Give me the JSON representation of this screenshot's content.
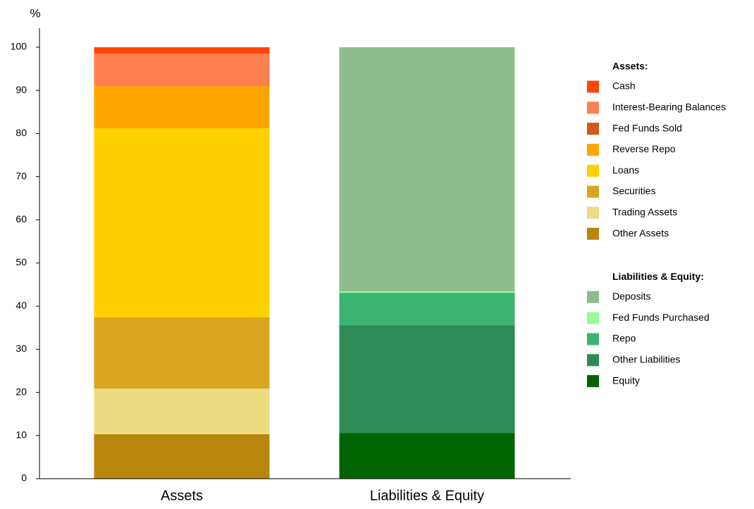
{
  "chart_data": {
    "type": "stacked-bar",
    "y_label": "%",
    "categories": [
      "Assets",
      "Liabilities & Equity"
    ],
    "ylim": [
      0,
      100
    ],
    "yticks": [
      0,
      10,
      20,
      30,
      40,
      50,
      60,
      70,
      80,
      90,
      100
    ],
    "groups": [
      {
        "title": "Assets:",
        "series": [
          {
            "name": "Cash",
            "color": "#ff4500",
            "values": [
              1.5,
              null
            ]
          },
          {
            "name": "Interest-Bearing Balances",
            "color": "#ff7f50",
            "values": [
              7.5,
              null
            ]
          },
          {
            "name": "Fed Funds Sold",
            "color": "#d2581a",
            "values": [
              0,
              null
            ]
          },
          {
            "name": "Reverse Repo",
            "color": "#ffa500",
            "values": [
              9.8,
              null
            ]
          },
          {
            "name": "Loans",
            "color": "#ffd000",
            "values": [
              43.8,
              null
            ]
          },
          {
            "name": "Securities",
            "color": "#daa520",
            "values": [
              16.5,
              null
            ]
          },
          {
            "name": "Trading Assets",
            "color": "#eedc82",
            "values": [
              10.6,
              null
            ]
          },
          {
            "name": "Other Assets",
            "color": "#b8860b",
            "values": [
              10.3,
              null
            ]
          }
        ]
      },
      {
        "title": "Liabilities & Equity:",
        "series": [
          {
            "name": "Deposits",
            "color": "#8fbc8f",
            "values": [
              null,
              56.6
            ]
          },
          {
            "name": "Fed Funds Purchased",
            "color": "#98fb98",
            "values": [
              null,
              0.3
            ]
          },
          {
            "name": "Repo",
            "color": "#3cb371",
            "values": [
              null,
              7.5
            ]
          },
          {
            "name": "Other Liabilities",
            "color": "#2e8b57",
            "values": [
              null,
              25.0
            ]
          },
          {
            "name": "Equity",
            "color": "#006400",
            "values": [
              null,
              10.6
            ]
          }
        ]
      }
    ]
  }
}
